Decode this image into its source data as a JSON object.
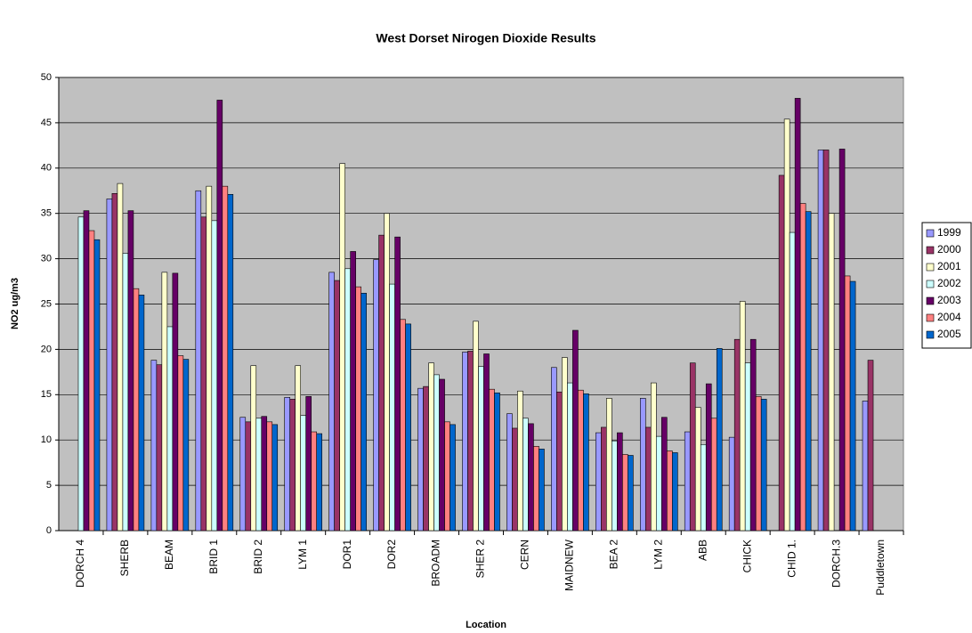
{
  "chart_data": {
    "type": "bar",
    "title": "West Dorset Nirogen Dioxide Results",
    "x_label": "Location",
    "y_label": "NO2 ug/m3",
    "categories": [
      "DORCH 4",
      "SHERB",
      "BEAM",
      "BRID 1",
      "BRID 2",
      "LYM 1",
      "DOR1",
      "DOR2",
      "BROADM",
      "SHER 2",
      "CERN",
      "MAIDNEW",
      "BEA 2",
      "LYM 2",
      "ABB",
      "CHICK",
      "CHID 1.",
      "DORCH.3",
      "Puddletown"
    ],
    "series": [
      {
        "name": "1999",
        "color": "#9999ff",
        "values": [
          null,
          36.6,
          18.8,
          37.5,
          12.5,
          14.7,
          28.5,
          29.9,
          15.7,
          19.7,
          12.9,
          18.0,
          10.8,
          14.6,
          10.9,
          10.3,
          null,
          42.0,
          14.3
        ]
      },
      {
        "name": "2000",
        "color": "#993366",
        "values": [
          null,
          37.2,
          18.3,
          34.6,
          12.0,
          14.5,
          27.6,
          32.6,
          15.9,
          19.8,
          11.3,
          15.3,
          11.4,
          11.4,
          18.5,
          21.1,
          39.2,
          42.0,
          18.8
        ]
      },
      {
        "name": "2001",
        "color": "#ffffcc",
        "values": [
          null,
          38.3,
          28.5,
          38.0,
          18.2,
          18.2,
          40.5,
          35.0,
          18.5,
          23.1,
          15.4,
          19.1,
          14.6,
          16.3,
          13.6,
          25.3,
          45.4,
          35.0,
          null
        ]
      },
      {
        "name": "2002",
        "color": "#ccffff",
        "values": [
          34.6,
          30.6,
          22.5,
          34.2,
          12.4,
          12.7,
          28.9,
          27.2,
          17.2,
          18.1,
          12.4,
          16.3,
          9.9,
          10.4,
          9.5,
          18.5,
          32.9,
          null,
          null
        ]
      },
      {
        "name": "2003",
        "color": "#660066",
        "values": [
          35.3,
          35.3,
          28.4,
          47.5,
          12.6,
          14.8,
          30.8,
          32.4,
          16.7,
          19.5,
          11.8,
          22.1,
          10.8,
          12.5,
          16.2,
          21.1,
          47.7,
          42.1,
          null
        ]
      },
      {
        "name": "2004",
        "color": "#ff8080",
        "values": [
          33.1,
          26.7,
          19.3,
          38.0,
          12.0,
          10.9,
          26.9,
          23.3,
          12.0,
          15.6,
          9.3,
          15.5,
          8.4,
          8.8,
          12.4,
          14.8,
          36.1,
          28.1,
          null
        ]
      },
      {
        "name": "2005",
        "color": "#0066cc",
        "values": [
          32.1,
          26.0,
          18.9,
          37.1,
          11.7,
          10.7,
          26.2,
          22.8,
          11.7,
          15.2,
          9.0,
          15.1,
          8.3,
          8.6,
          20.1,
          14.5,
          35.2,
          27.5,
          null
        ]
      }
    ],
    "ylim": [
      0,
      50
    ],
    "yticks": [
      0,
      5,
      10,
      15,
      20,
      25,
      30,
      35,
      40,
      45,
      50
    ],
    "grid": true,
    "legend": "right",
    "plot_background": "#c0c0c0"
  }
}
